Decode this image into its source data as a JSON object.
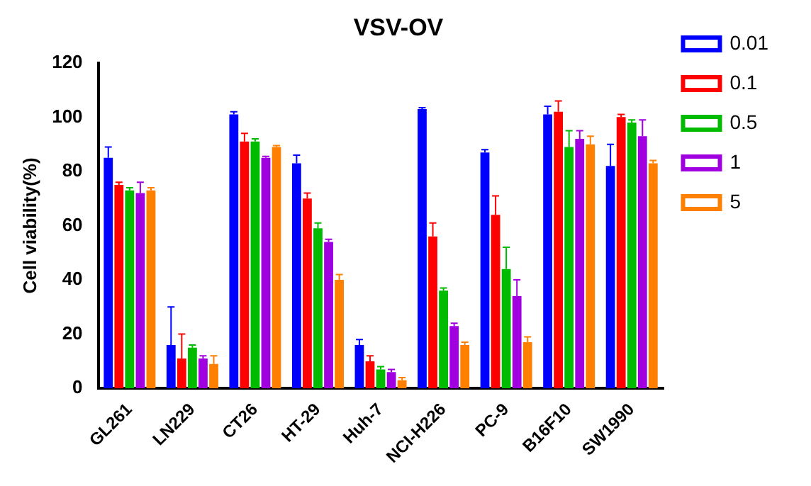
{
  "chart_data": {
    "type": "bar",
    "title": "VSV-OV",
    "ylabel": "Cell viability(%)",
    "categories": [
      "GL261",
      "LN229",
      "CT26",
      "HT-29",
      "Huh-7",
      "NCI-H226",
      "PC-9",
      "B16F10",
      "SW1990"
    ],
    "series": [
      {
        "name": "0.01",
        "color": "#0000ff",
        "values": [
          85,
          16,
          101,
          83,
          16,
          103,
          87,
          101,
          82
        ],
        "errors": [
          4,
          14,
          1,
          3,
          2,
          0.5,
          1,
          3,
          8
        ]
      },
      {
        "name": "0.1",
        "color": "#ff0000",
        "values": [
          75,
          11,
          91,
          70,
          10,
          56,
          64,
          102,
          100
        ],
        "errors": [
          1,
          9,
          3,
          2,
          2,
          5,
          7,
          4,
          1
        ]
      },
      {
        "name": "0.5",
        "color": "#00bb00",
        "values": [
          73,
          15,
          91,
          59,
          7,
          36,
          44,
          89,
          98
        ],
        "errors": [
          1,
          1,
          1,
          2,
          1,
          1,
          8,
          6,
          1
        ]
      },
      {
        "name": "1",
        "color": "#a000e0",
        "values": [
          72,
          11,
          85,
          54,
          6,
          23,
          34,
          92,
          93
        ],
        "errors": [
          4,
          1,
          0.5,
          1,
          1,
          1,
          6,
          3,
          6
        ]
      },
      {
        "name": "5",
        "color": "#ff8000",
        "values": [
          73,
          9,
          89,
          40,
          3,
          16,
          17,
          90,
          83
        ],
        "errors": [
          1,
          3,
          0.5,
          2,
          1,
          1,
          2,
          3,
          1
        ]
      }
    ],
    "ylim": [
      0,
      120
    ],
    "yticks": [
      0,
      20,
      40,
      60,
      80,
      100,
      120
    ],
    "grid": false,
    "legend": "right"
  }
}
